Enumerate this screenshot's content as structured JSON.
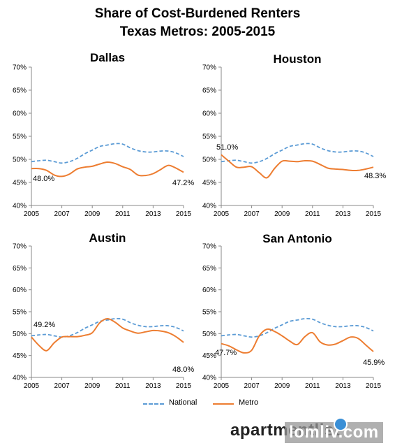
{
  "title_line1": "Share of Cost-Burdened Renters",
  "title_line2": "Texas Metros: 2005-2015",
  "legend": {
    "national": "National",
    "metro": "Metro"
  },
  "colors": {
    "national": "#5b9bd5",
    "metro": "#ed7d31"
  },
  "brand": {
    "main": "apartmentlist",
    "overlay": "lomliv.com"
  },
  "chart_data": [
    {
      "type": "line",
      "title": "Dallas",
      "x": [
        2005,
        2005.5,
        2006,
        2006.5,
        2007,
        2007.5,
        2008,
        2008.5,
        2009,
        2009.5,
        2010,
        2010.5,
        2011,
        2011.5,
        2012,
        2012.5,
        2013,
        2013.5,
        2014,
        2014.5,
        2015
      ],
      "xticks": [
        "2005",
        "2007",
        "2009",
        "2011",
        "2013",
        "2015"
      ],
      "yticks": [
        "40%",
        "45%",
        "50%",
        "55%",
        "60%",
        "65%",
        "70%"
      ],
      "ylim": [
        40,
        70
      ],
      "series": [
        {
          "name": "National",
          "values": [
            49.5,
            49.7,
            49.8,
            49.5,
            49.2,
            49.5,
            50.2,
            51.2,
            52.0,
            52.8,
            53.1,
            53.4,
            53.3,
            52.5,
            51.9,
            51.6,
            51.6,
            51.8,
            51.8,
            51.4,
            50.6
          ]
        },
        {
          "name": "Metro",
          "values": [
            48.0,
            48.0,
            47.6,
            46.6,
            46.3,
            46.8,
            47.9,
            48.3,
            48.5,
            49.0,
            49.4,
            49.1,
            48.4,
            47.8,
            46.6,
            46.5,
            46.9,
            47.8,
            48.7,
            48.1,
            47.2
          ]
        }
      ],
      "annotations": [
        "48.0%",
        "47.2%"
      ]
    },
    {
      "type": "line",
      "title": "Houston",
      "x": [
        2005,
        2005.5,
        2006,
        2006.5,
        2007,
        2007.5,
        2008,
        2008.5,
        2009,
        2009.5,
        2010,
        2010.5,
        2011,
        2011.5,
        2012,
        2012.5,
        2013,
        2013.5,
        2014,
        2014.5,
        2015
      ],
      "xticks": [
        "2005",
        "2007",
        "2009",
        "2011",
        "2013",
        "2015"
      ],
      "yticks": [
        "40%",
        "45%",
        "50%",
        "55%",
        "60%",
        "65%",
        "70%"
      ],
      "ylim": [
        40,
        70
      ],
      "series": [
        {
          "name": "National",
          "values": [
            49.5,
            49.7,
            49.8,
            49.5,
            49.2,
            49.5,
            50.2,
            51.2,
            52.0,
            52.8,
            53.1,
            53.4,
            53.3,
            52.5,
            51.9,
            51.6,
            51.6,
            51.8,
            51.8,
            51.4,
            50.6
          ]
        },
        {
          "name": "Metro",
          "values": [
            51.0,
            49.6,
            48.3,
            48.3,
            48.4,
            47.1,
            46.0,
            48.0,
            49.6,
            49.6,
            49.5,
            49.7,
            49.6,
            48.9,
            48.1,
            47.9,
            47.8,
            47.6,
            47.6,
            47.9,
            48.3
          ]
        }
      ],
      "annotations": [
        "51.0%",
        "48.3%"
      ]
    },
    {
      "type": "line",
      "title": "Austin",
      "x": [
        2005,
        2005.5,
        2006,
        2006.5,
        2007,
        2007.5,
        2008,
        2008.5,
        2009,
        2009.5,
        2010,
        2010.5,
        2011,
        2011.5,
        2012,
        2012.5,
        2013,
        2013.5,
        2014,
        2014.5,
        2015
      ],
      "xticks": [
        "2005",
        "2007",
        "2009",
        "2011",
        "2013",
        "2015"
      ],
      "yticks": [
        "40%",
        "45%",
        "50%",
        "55%",
        "60%",
        "65%",
        "70%"
      ],
      "ylim": [
        40,
        70
      ],
      "series": [
        {
          "name": "National",
          "values": [
            49.5,
            49.7,
            49.8,
            49.5,
            49.2,
            49.5,
            50.2,
            51.2,
            52.0,
            52.8,
            53.1,
            53.4,
            53.3,
            52.5,
            51.9,
            51.6,
            51.6,
            51.8,
            51.8,
            51.4,
            50.6
          ]
        },
        {
          "name": "Metro",
          "values": [
            49.2,
            47.3,
            46.1,
            47.9,
            49.2,
            49.3,
            49.3,
            49.6,
            50.2,
            52.5,
            53.4,
            52.6,
            51.3,
            50.6,
            50.1,
            50.4,
            50.7,
            50.6,
            50.2,
            49.3,
            48.0
          ]
        }
      ],
      "annotations": [
        "49.2%",
        "48.0%"
      ]
    },
    {
      "type": "line",
      "title": "San Antonio",
      "x": [
        2005,
        2005.5,
        2006,
        2006.5,
        2007,
        2007.5,
        2008,
        2008.5,
        2009,
        2009.5,
        2010,
        2010.5,
        2011,
        2011.5,
        2012,
        2012.5,
        2013,
        2013.5,
        2014,
        2014.5,
        2015
      ],
      "xticks": [
        "2005",
        "2007",
        "2009",
        "2011",
        "2013",
        "2015"
      ],
      "yticks": [
        "40%",
        "45%",
        "50%",
        "55%",
        "60%",
        "65%",
        "70%"
      ],
      "ylim": [
        40,
        70
      ],
      "series": [
        {
          "name": "National",
          "values": [
            49.5,
            49.7,
            49.8,
            49.5,
            49.2,
            49.5,
            50.2,
            51.2,
            52.0,
            52.8,
            53.1,
            53.4,
            53.3,
            52.5,
            51.9,
            51.6,
            51.6,
            51.8,
            51.8,
            51.4,
            50.6
          ]
        },
        {
          "name": "Metro",
          "values": [
            47.7,
            47.2,
            46.3,
            45.6,
            46.2,
            49.5,
            51.0,
            50.5,
            49.5,
            48.3,
            47.5,
            49.3,
            50.2,
            48.1,
            47.4,
            47.6,
            48.4,
            49.2,
            48.9,
            47.4,
            45.9
          ]
        }
      ],
      "annotations": [
        "47.7%",
        "45.9%"
      ]
    }
  ]
}
